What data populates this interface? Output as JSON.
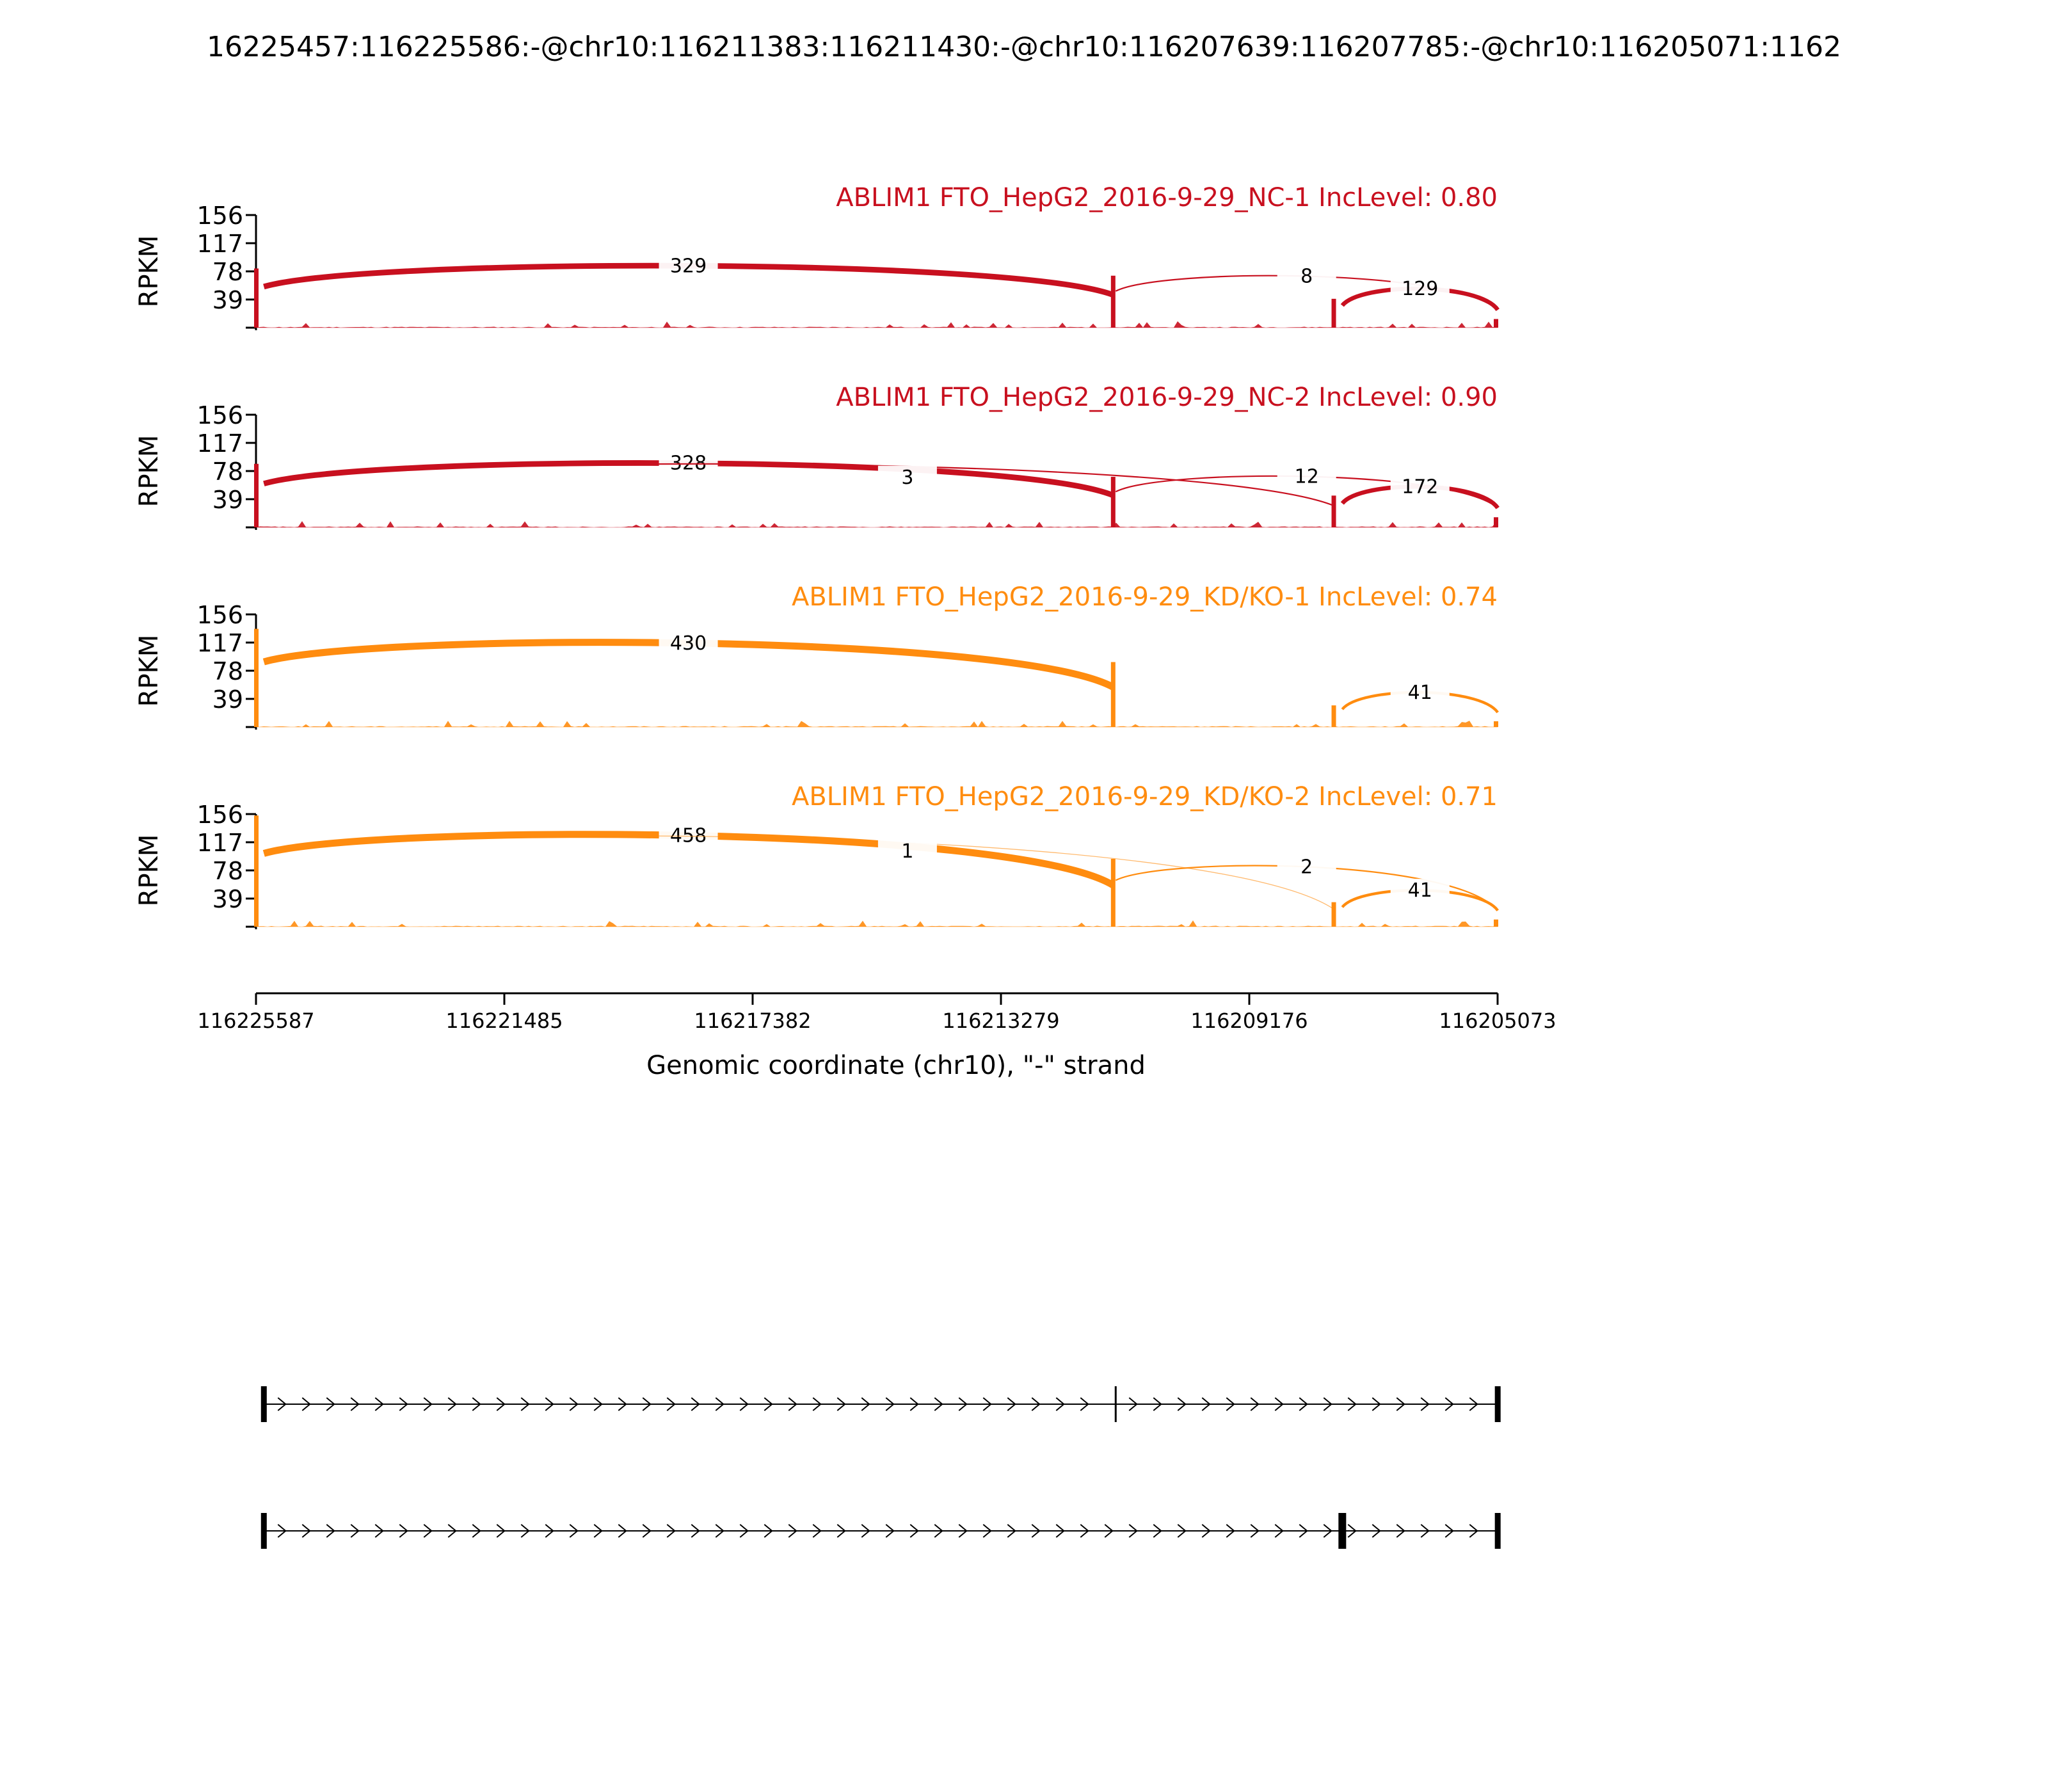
{
  "title": "16225457:116225586:-@chr10:116211383:116211430:-@chr10:116207639:116207785:-@chr10:116205071:1162",
  "colors": {
    "nc": "#c8101f",
    "kd": "#ff8c0f",
    "axis": "#000000"
  },
  "chart_data": {
    "type": "area",
    "xlabel": "Genomic coordinate (chr10), \"-\" strand",
    "x_ticks": [
      "116225587",
      "116221485",
      "116217382",
      "116213279",
      "116209176",
      "116205073"
    ],
    "x_range": [
      116225587,
      116205073
    ],
    "ylabel": "RPKM",
    "y_ticks": [
      "156",
      "117",
      "78",
      "39"
    ],
    "ylim": [
      0,
      156
    ],
    "panels": [
      {
        "label": "ABLIM1 FTO_HepG2_2016-9-29_NC-1 IncLevel: 0.80",
        "group": "nc",
        "exon_peaks": [
          82,
          72,
          40,
          12
        ],
        "junctions": [
          {
            "label": "329",
            "from": 116225457,
            "to": 116211430,
            "width": 4
          },
          {
            "label": "8",
            "from": 116211383,
            "to": 116205071,
            "width": 1
          },
          {
            "label": "129",
            "from": 116207639,
            "to": 116205071,
            "width": 3
          }
        ]
      },
      {
        "label": "ABLIM1 FTO_HepG2_2016-9-29_NC-2 IncLevel: 0.90",
        "group": "nc",
        "exon_peaks": [
          88,
          70,
          44,
          14
        ],
        "junctions": [
          {
            "label": "328",
            "from": 116225457,
            "to": 116211430,
            "width": 4
          },
          {
            "label": "3",
            "from": 116225457,
            "to": 116207785,
            "width": 1
          },
          {
            "label": "12",
            "from": 116211383,
            "to": 116205071,
            "width": 1
          },
          {
            "label": "172",
            "from": 116207639,
            "to": 116205071,
            "width": 3
          }
        ]
      },
      {
        "label": "ABLIM1 FTO_HepG2_2016-9-29_KD/KO-1 IncLevel: 0.74",
        "group": "kd",
        "exon_peaks": [
          136,
          90,
          30,
          8
        ],
        "junctions": [
          {
            "label": "430",
            "from": 116225457,
            "to": 116211430,
            "width": 5
          },
          {
            "label": "41",
            "from": 116207639,
            "to": 116205071,
            "width": 2
          }
        ]
      },
      {
        "label": "ABLIM1 FTO_HepG2_2016-9-29_KD/KO-2 IncLevel: 0.71",
        "group": "kd",
        "exon_peaks": [
          154,
          94,
          34,
          10
        ],
        "junctions": [
          {
            "label": "458",
            "from": 116225457,
            "to": 116211430,
            "width": 5
          },
          {
            "label": "1",
            "from": 116225457,
            "to": 116207785,
            "width": 0.6
          },
          {
            "label": "2",
            "from": 116211383,
            "to": 116205071,
            "width": 1
          },
          {
            "label": "41",
            "from": 116207639,
            "to": 116205071,
            "width": 2
          }
        ]
      }
    ],
    "isoforms": [
      {
        "exons": [
          116225457,
          116211383,
          116205071
        ]
      },
      {
        "exons": [
          116225457,
          116207639,
          116205071
        ]
      }
    ]
  }
}
